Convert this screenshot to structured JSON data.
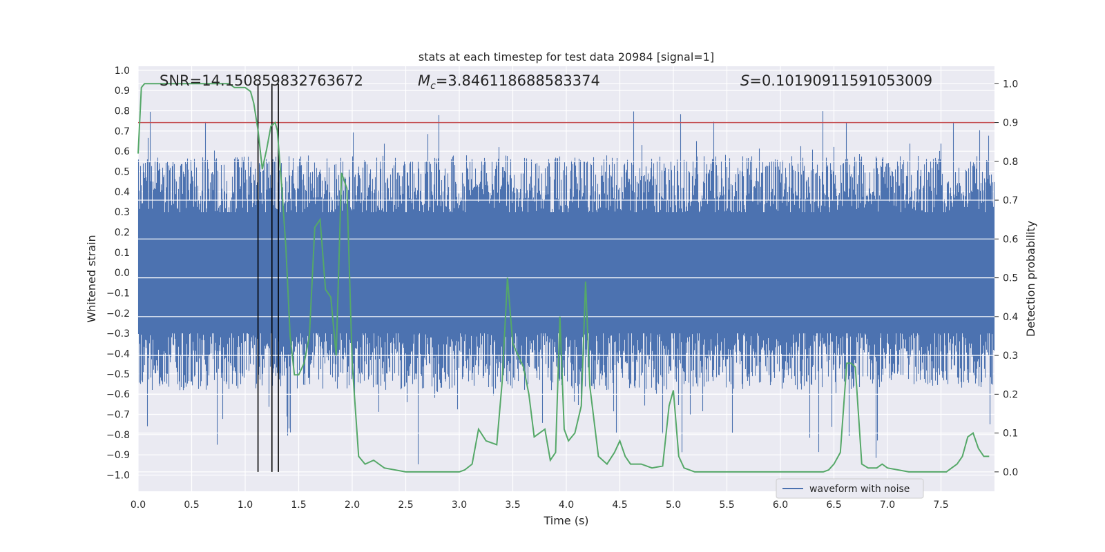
{
  "chart_data": {
    "type": "line",
    "title": "stats at each timestep for test data 20984 [signal=1]",
    "xlabel": "Time (s)",
    "ylabel_left": "Whitened strain",
    "ylabel_right": "Detection probability",
    "xlim": [
      0,
      8
    ],
    "ylim_left": [
      -1.08,
      1.02
    ],
    "ylim_right": [
      -0.05,
      1.045
    ],
    "x_ticks": [
      0,
      0.5,
      1,
      1.5,
      2,
      2.5,
      3,
      3.5,
      4,
      4.5,
      5,
      5.5,
      6,
      6.5,
      7,
      7.5
    ],
    "x_tick_labels": [
      "0.0",
      "0.5",
      "1.0",
      "1.5",
      "2.0",
      "2.5",
      "3.0",
      "3.5",
      "4.0",
      "4.5",
      "5.0",
      "5.5",
      "6.0",
      "6.5",
      "7.0",
      "7.5"
    ],
    "y_left_ticks": [
      -1,
      -0.9,
      -0.8,
      -0.7,
      -0.6,
      -0.5,
      -0.4,
      -0.3,
      -0.2,
      -0.1,
      0,
      0.1,
      0.2,
      0.3,
      0.4,
      0.5,
      0.6,
      0.7,
      0.8,
      0.9,
      1
    ],
    "y_left_tick_labels": [
      "−1.0",
      "−0.9",
      "−0.8",
      "−0.7",
      "−0.6",
      "−0.5",
      "−0.4",
      "−0.3",
      "−0.2",
      "−0.1",
      "0.0",
      "0.1",
      "0.2",
      "0.3",
      "0.4",
      "0.5",
      "0.6",
      "0.7",
      "0.8",
      "0.9",
      "1.0"
    ],
    "y_right_ticks": [
      0,
      0.1,
      0.2,
      0.3,
      0.4,
      0.5,
      0.6,
      0.7,
      0.8,
      0.9,
      1
    ],
    "y_right_tick_labels": [
      "0.0",
      "0.1",
      "0.2",
      "0.3",
      "0.4",
      "0.5",
      "0.6",
      "0.7",
      "0.8",
      "0.9",
      "1.0"
    ],
    "annotations": {
      "snr": "SNR=14.150859832763672",
      "mc_symbol": "M",
      "mc_sub": "c",
      "mc_value": "=3.846118688583374",
      "s_symbol": "S",
      "s_value": "=0.10190911591053009"
    },
    "series": [
      {
        "name": "waveform with noise",
        "axis": "left",
        "color": "#4c72b0",
        "kind": "noise-envelope",
        "typical_positive_peak": 0.5,
        "typical_negative_peak": -0.5,
        "max_value": 0.92,
        "min_value": -1.0
      },
      {
        "name": "detection probability",
        "axis": "right",
        "color": "#55a868",
        "x": [
          0.0,
          0.03,
          0.06,
          0.12,
          0.2,
          0.3,
          0.4,
          0.5,
          0.6,
          0.7,
          0.8,
          0.85,
          0.9,
          0.95,
          1.0,
          1.05,
          1.08,
          1.12,
          1.16,
          1.2,
          1.24,
          1.28,
          1.3,
          1.34,
          1.38,
          1.42,
          1.46,
          1.5,
          1.55,
          1.6,
          1.65,
          1.7,
          1.75,
          1.8,
          1.85,
          1.9,
          1.95,
          2.0,
          2.06,
          2.12,
          2.2,
          2.3,
          2.5,
          2.7,
          2.9,
          3.0,
          3.05,
          3.12,
          3.18,
          3.25,
          3.35,
          3.4,
          3.45,
          3.5,
          3.55,
          3.6,
          3.65,
          3.7,
          3.75,
          3.8,
          3.85,
          3.9,
          3.94,
          3.98,
          4.02,
          4.08,
          4.14,
          4.18,
          4.22,
          4.3,
          4.38,
          4.45,
          4.5,
          4.55,
          4.6,
          4.7,
          4.8,
          4.9,
          4.96,
          5.0,
          5.05,
          5.1,
          5.2,
          5.4,
          5.6,
          5.8,
          6.0,
          6.2,
          6.4,
          6.45,
          6.5,
          6.56,
          6.62,
          6.66,
          6.7,
          6.76,
          6.82,
          6.9,
          6.95,
          7.0,
          7.2,
          7.4,
          7.55,
          7.6,
          7.65,
          7.7,
          7.75,
          7.8,
          7.85,
          7.9,
          7.95
        ],
        "values": [
          0.82,
          0.99,
          1.0,
          1.0,
          1.0,
          1.0,
          1.0,
          1.0,
          1.0,
          1.0,
          1.0,
          1.0,
          0.99,
          0.99,
          0.99,
          0.98,
          0.95,
          0.88,
          0.78,
          0.83,
          0.89,
          0.9,
          0.88,
          0.74,
          0.58,
          0.35,
          0.25,
          0.25,
          0.28,
          0.35,
          0.63,
          0.65,
          0.47,
          0.45,
          0.3,
          0.77,
          0.73,
          0.28,
          0.04,
          0.02,
          0.03,
          0.01,
          0.0,
          0.0,
          0.0,
          0.0,
          0.005,
          0.02,
          0.11,
          0.08,
          0.07,
          0.23,
          0.5,
          0.33,
          0.3,
          0.27,
          0.2,
          0.09,
          0.1,
          0.11,
          0.03,
          0.05,
          0.4,
          0.11,
          0.08,
          0.1,
          0.17,
          0.49,
          0.22,
          0.04,
          0.02,
          0.05,
          0.08,
          0.04,
          0.02,
          0.02,
          0.01,
          0.015,
          0.17,
          0.21,
          0.04,
          0.01,
          0.0,
          0.0,
          0.0,
          0.0,
          0.0,
          0.0,
          0.0,
          0.005,
          0.02,
          0.05,
          0.28,
          0.28,
          0.27,
          0.02,
          0.01,
          0.01,
          0.02,
          0.01,
          0.0,
          0.0,
          0.0,
          0.01,
          0.02,
          0.04,
          0.09,
          0.1,
          0.06,
          0.04,
          0.04
        ]
      }
    ],
    "red_line_detection_probability": 0.9,
    "vertical_lines_x": [
      1.12,
      1.25,
      1.31
    ],
    "legend": {
      "label": "waveform with noise",
      "location": "lower-right"
    }
  }
}
